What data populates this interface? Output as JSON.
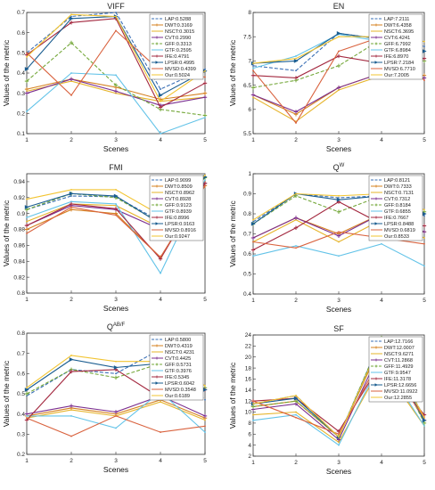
{
  "colors": [
    "#3a6fb5",
    "#d5801f",
    "#e6b42a",
    "#7b2f8f",
    "#75a83b",
    "#63c3e8",
    "#a3283f",
    "#1a5d90",
    "#d9623e",
    "#f2c431"
  ],
  "methods": [
    "LAP",
    "DWT",
    "NSCT",
    "CVT",
    "GFF",
    "GTF",
    "IFE",
    "LPSR",
    "MVSD",
    "Our"
  ],
  "chart_data": [
    {
      "type": "line",
      "title": "VIFF",
      "title_sup": "",
      "xlabel": "Scenes",
      "ylabel": "Values of the metric",
      "categories": [
        "1",
        "2",
        "3",
        "4",
        "5"
      ],
      "xlim": [
        1,
        5
      ],
      "ylim": [
        0.1,
        0.7
      ],
      "yticks": [
        "0.1",
        "0.2",
        "0.3",
        "0.4",
        "0.5",
        "0.6",
        "0.7"
      ],
      "legend_loc": "top-right",
      "series": [
        {
          "name": "LAP",
          "legend": "LAP:0.5288",
          "values": [
            0.5,
            0.68,
            0.7,
            0.32,
            0.42
          ]
        },
        {
          "name": "DWT",
          "legend": "DWT:0.3169",
          "values": [
            0.32,
            0.37,
            0.33,
            0.27,
            0.3
          ]
        },
        {
          "name": "NSCT",
          "legend": "NSCT:0.3015",
          "values": [
            0.31,
            0.36,
            0.3,
            0.26,
            0.28
          ]
        },
        {
          "name": "CVT",
          "legend": "CVT:0.2990",
          "values": [
            0.3,
            0.37,
            0.31,
            0.24,
            0.28
          ]
        },
        {
          "name": "GFF",
          "legend": "GFF:0.3313",
          "values": [
            0.36,
            0.55,
            0.34,
            0.22,
            0.19
          ]
        },
        {
          "name": "GTF",
          "legend": "GTF:0.2595",
          "values": [
            0.21,
            0.4,
            0.39,
            0.1,
            0.18
          ]
        },
        {
          "name": "IFE",
          "legend": "IFE:0.4791",
          "values": [
            0.49,
            0.65,
            0.67,
            0.23,
            0.35
          ]
        },
        {
          "name": "LPSR",
          "legend": "LPSR:0.4995",
          "values": [
            0.42,
            0.67,
            0.68,
            0.29,
            0.41
          ]
        },
        {
          "name": "MVSD",
          "legend": "MVSD:0.4399",
          "values": [
            0.5,
            0.29,
            0.61,
            0.41,
            0.38
          ]
        },
        {
          "name": "Our",
          "legend": "Our:0.5024",
          "values": [
            0.48,
            0.69,
            0.68,
            0.26,
            0.41
          ]
        }
      ]
    },
    {
      "type": "line",
      "title": "EN",
      "title_sup": "",
      "xlabel": "Scenes",
      "ylabel": "Values of the metric",
      "categories": [
        "1",
        "2",
        "3",
        "4",
        "5"
      ],
      "xlim": [
        1,
        5
      ],
      "ylim": [
        5.5,
        8
      ],
      "yticks": [
        "5.5",
        "6",
        "6.5",
        "7",
        "7.5",
        "8"
      ],
      "legend_loc": "top-right",
      "series": [
        {
          "name": "LAP",
          "legend": "LAP:7.2111",
          "values": [
            6.9,
            6.8,
            7.57,
            7.45,
            7.3
          ]
        },
        {
          "name": "DWT",
          "legend": "DWT:6.4358",
          "values": [
            6.3,
            5.9,
            6.45,
            6.75,
            6.7
          ]
        },
        {
          "name": "NSCT",
          "legend": "NSCT:6.3695",
          "values": [
            6.25,
            5.75,
            6.4,
            6.7,
            6.65
          ]
        },
        {
          "name": "CVT",
          "legend": "CVT:6.4241",
          "values": [
            6.3,
            5.95,
            6.45,
            6.75,
            6.65
          ]
        },
        {
          "name": "GFF",
          "legend": "GFF:6.7992",
          "values": [
            6.45,
            6.6,
            6.9,
            7.45,
            7.0
          ]
        },
        {
          "name": "GTF",
          "legend": "GTF:6.8984",
          "values": [
            6.85,
            7.1,
            7.55,
            7.4,
            7.05
          ]
        },
        {
          "name": "IFE",
          "legend": "IFE:6.8970",
          "values": [
            6.7,
            6.65,
            7.1,
            6.95,
            7.05
          ]
        },
        {
          "name": "LPSR",
          "legend": "LPSR:7.2184",
          "values": [
            6.95,
            7.0,
            7.57,
            7.45,
            7.2
          ]
        },
        {
          "name": "MVSD",
          "legend": "MVSD:6.7710",
          "values": [
            6.8,
            5.72,
            7.2,
            7.5,
            6.6
          ]
        },
        {
          "name": "Our",
          "legend": "Our:7.2005",
          "values": [
            6.95,
            7.05,
            7.5,
            7.5,
            7.4
          ]
        }
      ]
    },
    {
      "type": "line",
      "title": "FMI",
      "title_sup": "",
      "xlabel": "Scenes",
      "ylabel": "Values of the metric",
      "categories": [
        "1",
        "2",
        "3",
        "4",
        "5"
      ],
      "xlim": [
        1,
        5
      ],
      "ylim": [
        0.8,
        0.95
      ],
      "yticks": [
        "0.8",
        "0.82",
        "0.84",
        "0.86",
        "0.88",
        "0.9",
        "0.92",
        "0.94"
      ],
      "legend_loc": "top-right",
      "series": [
        {
          "name": "LAP",
          "legend": "LAP:0.9099",
          "values": [
            0.905,
            0.922,
            0.921,
            0.89,
            0.945
          ]
        },
        {
          "name": "DWT",
          "legend": "DWT:0.8509",
          "values": [
            0.88,
            0.905,
            0.9,
            0.845,
            0.935
          ]
        },
        {
          "name": "NSCT",
          "legend": "NSCT:0.8962",
          "values": [
            0.89,
            0.912,
            0.91,
            0.882,
            0.94
          ]
        },
        {
          "name": "CVT",
          "legend": "CVT:0.8928",
          "values": [
            0.885,
            0.91,
            0.905,
            0.88,
            0.938
          ]
        },
        {
          "name": "GFF",
          "legend": "GFF:0.9123",
          "values": [
            0.905,
            0.925,
            0.92,
            0.888,
            0.945
          ]
        },
        {
          "name": "GTF",
          "legend": "GTF:0.8939",
          "values": [
            0.895,
            0.915,
            0.912,
            0.825,
            0.942
          ]
        },
        {
          "name": "IFE",
          "legend": "IFE:0.8996",
          "values": [
            0.885,
            0.912,
            0.906,
            0.843,
            0.938
          ]
        },
        {
          "name": "LPSR",
          "legend": "LPSR:0.9163",
          "values": [
            0.908,
            0.925,
            0.922,
            0.887,
            0.946
          ]
        },
        {
          "name": "MVSD",
          "legend": "MVSD:0.8916",
          "values": [
            0.875,
            0.908,
            0.898,
            0.845,
            0.935
          ]
        },
        {
          "name": "Our",
          "legend": "Our:0.9247",
          "values": [
            0.918,
            0.93,
            0.93,
            0.898,
            0.948
          ]
        }
      ]
    },
    {
      "type": "line",
      "title": "Q",
      "title_sup": "W",
      "xlabel": "Scenes",
      "ylabel": "Values of the metric",
      "categories": [
        "1",
        "2",
        "3",
        "4",
        "5"
      ],
      "xlim": [
        1,
        5
      ],
      "ylim": [
        0.4,
        1
      ],
      "yticks": [
        "0.4",
        "0.5",
        "0.6",
        "0.7",
        "0.8",
        "0.9",
        "1"
      ],
      "legend_loc": "top-right",
      "series": [
        {
          "name": "LAP",
          "legend": "LAP:0.8121",
          "values": [
            0.76,
            0.9,
            0.88,
            0.89,
            0.79
          ]
        },
        {
          "name": "DWT",
          "legend": "DWT:0.7333",
          "values": [
            0.68,
            0.78,
            0.7,
            0.8,
            0.71
          ]
        },
        {
          "name": "NSCT",
          "legend": "NSCT:0.7131",
          "values": [
            0.66,
            0.77,
            0.66,
            0.77,
            0.68
          ]
        },
        {
          "name": "CVT",
          "legend": "CVT:0.7312",
          "values": [
            0.68,
            0.78,
            0.69,
            0.8,
            0.71
          ]
        },
        {
          "name": "GFF",
          "legend": "GFF:0.8184",
          "values": [
            0.75,
            0.89,
            0.81,
            0.89,
            0.81
          ]
        },
        {
          "name": "GTF",
          "legend": "GTF:0.6855",
          "values": [
            0.59,
            0.64,
            0.59,
            0.65,
            0.54
          ]
        },
        {
          "name": "IFE",
          "legend": "IFE:0.7667",
          "values": [
            0.62,
            0.73,
            0.86,
            0.75,
            0.74
          ]
        },
        {
          "name": "LPSR",
          "legend": "LPSR:0.8488",
          "values": [
            0.75,
            0.9,
            0.87,
            0.89,
            0.8
          ]
        },
        {
          "name": "MVSD",
          "legend": "MVSD:0.6819",
          "values": [
            0.66,
            0.63,
            0.71,
            0.68,
            0.65
          ]
        },
        {
          "name": "Our",
          "legend": "Our:0.8533",
          "values": [
            0.77,
            0.9,
            0.89,
            0.9,
            0.82
          ]
        }
      ]
    },
    {
      "type": "line",
      "title": "Q",
      "title_sup": "AB/F",
      "xlabel": "Scenes",
      "ylabel": "Values of the metric",
      "categories": [
        "1",
        "2",
        "3",
        "4",
        "5"
      ],
      "xlim": [
        1,
        5
      ],
      "ylim": [
        0.2,
        0.8
      ],
      "yticks": [
        "0.2",
        "0.3",
        "0.4",
        "0.5",
        "0.6",
        "0.7",
        "0.8"
      ],
      "legend_loc": "top-right",
      "series": [
        {
          "name": "LAP",
          "legend": "LAP:0.5800",
          "values": [
            0.49,
            0.62,
            0.6,
            0.72,
            0.47
          ]
        },
        {
          "name": "DWT",
          "legend": "DWT:0.4319",
          "values": [
            0.39,
            0.43,
            0.4,
            0.47,
            0.38
          ]
        },
        {
          "name": "NSCT",
          "legend": "NSCT:0.4231",
          "values": [
            0.38,
            0.42,
            0.39,
            0.46,
            0.37
          ]
        },
        {
          "name": "CVT",
          "legend": "CVT:0.4425",
          "values": [
            0.4,
            0.44,
            0.41,
            0.49,
            0.39
          ]
        },
        {
          "name": "GFF",
          "legend": "GFF:0.5731",
          "values": [
            0.5,
            0.62,
            0.58,
            0.65,
            0.53
          ]
        },
        {
          "name": "GTF",
          "legend": "GTF:0.3976",
          "values": [
            0.39,
            0.39,
            0.33,
            0.51,
            0.31
          ]
        },
        {
          "name": "IFE",
          "legend": "IFE:0.5345",
          "values": [
            0.37,
            0.61,
            0.62,
            0.48,
            0.52
          ]
        },
        {
          "name": "LPSR",
          "legend": "LPSR:0.6042",
          "values": [
            0.52,
            0.67,
            0.63,
            0.65,
            0.52
          ]
        },
        {
          "name": "MVSD",
          "legend": "MVSD:0.3548",
          "values": [
            0.38,
            0.29,
            0.39,
            0.31,
            0.34
          ]
        },
        {
          "name": "Our",
          "legend": "Our:0.6189",
          "values": [
            0.53,
            0.69,
            0.66,
            0.66,
            0.54
          ]
        }
      ]
    },
    {
      "type": "line",
      "title": "SF",
      "title_sup": "",
      "xlabel": "Scenes",
      "ylabel": "Values of the metric",
      "categories": [
        "1",
        "2",
        "3",
        "4",
        "5"
      ],
      "xlim": [
        1,
        5
      ],
      "ylim": [
        2,
        24
      ],
      "yticks": [
        "2",
        "4",
        "6",
        "8",
        "10",
        "12",
        "14",
        "16",
        "18",
        "20",
        "22",
        "24"
      ],
      "legend_loc": "top-right",
      "series": [
        {
          "name": "LAP",
          "legend": "LAP:12.7166",
          "values": [
            11.5,
            13.0,
            5.5,
            23.5,
            9.0
          ]
        },
        {
          "name": "DWT",
          "legend": "DWT:12.0007",
          "values": [
            11.0,
            12.0,
            5.5,
            22.5,
            8.5
          ]
        },
        {
          "name": "NSCT",
          "legend": "NSCT:9.6271",
          "values": [
            9.5,
            10.0,
            4.5,
            18.5,
            7.5
          ]
        },
        {
          "name": "CVT",
          "legend": "CVT:11.2868",
          "values": [
            10.5,
            11.5,
            5.0,
            21.5,
            8.5
          ]
        },
        {
          "name": "GFF",
          "legend": "GFF:11.4929",
          "values": [
            11.0,
            12.0,
            5.5,
            23.5,
            8.0
          ]
        },
        {
          "name": "GTF",
          "legend": "GTF:9.9547",
          "values": [
            8.5,
            9.5,
            4.0,
            19.5,
            7.5
          ]
        },
        {
          "name": "IFE",
          "legend": "IFE:11.3178",
          "values": [
            12.0,
            12.5,
            6.5,
            19.0,
            9.5
          ]
        },
        {
          "name": "LPSR",
          "legend": "LPSR:12.6656",
          "values": [
            11.5,
            12.5,
            5.5,
            23.0,
            8.5
          ]
        },
        {
          "name": "MVSD",
          "legend": "MVSD:11.0922",
          "values": [
            12.0,
            9.0,
            6.0,
            20.0,
            9.0
          ]
        },
        {
          "name": "Our",
          "legend": "Our:12.2855",
          "values": [
            11.5,
            13.0,
            5.5,
            23.0,
            9.0
          ]
        }
      ]
    }
  ]
}
